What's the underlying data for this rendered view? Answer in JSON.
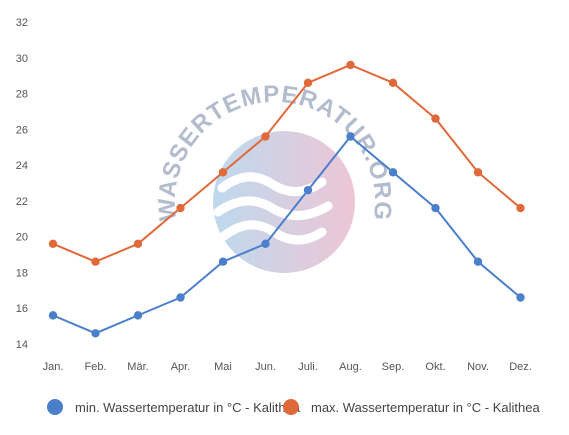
{
  "watermark": {
    "text": "WASSERTEMPERATUR.ORG"
  },
  "chart_data": {
    "type": "line",
    "categories": [
      "Jan.",
      "Feb.",
      "Mär.",
      "Apr.",
      "Mai",
      "Jun.",
      "Juli.",
      "Aug.",
      "Sep.",
      "Okt.",
      "Nov.",
      "Dez."
    ],
    "y_ticks": [
      14,
      16,
      18,
      20,
      22,
      24,
      26,
      28,
      30,
      32
    ],
    "ylim": [
      14,
      32
    ],
    "grid": false,
    "legend_position": "bottom",
    "series": [
      {
        "name": "min. Wassertemperatur in °C - Kalithea",
        "color": "#4a7fcc",
        "values": [
          15.6,
          14.6,
          15.6,
          16.6,
          18.6,
          19.6,
          22.6,
          25.6,
          23.6,
          21.6,
          18.6,
          16.6
        ]
      },
      {
        "name": "max. Wassertemperatur in °C - Kalithea",
        "color": "#e0693a",
        "values": [
          19.6,
          18.6,
          19.6,
          21.6,
          23.6,
          25.6,
          28.6,
          29.6,
          28.6,
          26.6,
          23.6,
          21.6
        ]
      }
    ]
  }
}
